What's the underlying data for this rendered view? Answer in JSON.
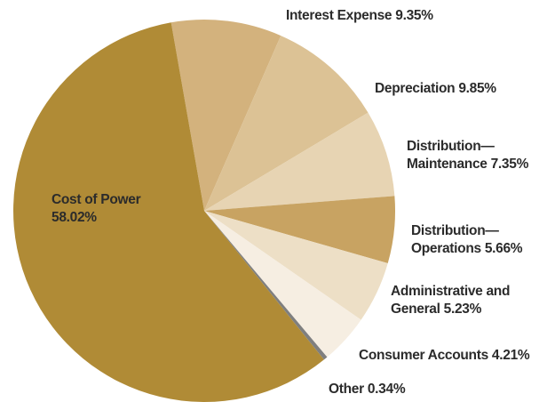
{
  "chart_data": {
    "type": "pie",
    "categories": [
      "Interest Expense",
      "Depreciation",
      "Distribution—Maintenance",
      "Distribution—Operations",
      "Administrative and General",
      "Consumer Accounts",
      "Other",
      "Cost of Power"
    ],
    "values": [
      9.35,
      9.85,
      7.35,
      5.66,
      5.23,
      4.21,
      0.34,
      58.02
    ],
    "value_labels": [
      "9.35%",
      "9.85%",
      "7.35%",
      "5.66%",
      "5.23%",
      "4.21%",
      "0.34%",
      "58.02%"
    ],
    "colors": [
      "#d3b27d",
      "#dcc295",
      "#e7d4b3",
      "#c8a362",
      "#eddfc6",
      "#f6eee2",
      "#7f7f7f",
      "#b08b36"
    ]
  }
}
